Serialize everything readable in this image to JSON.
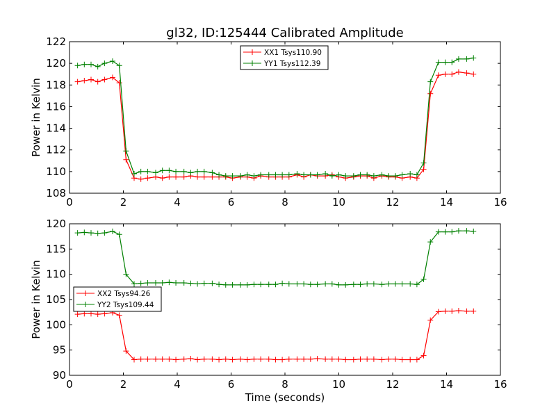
{
  "figure": {
    "title": "gl32, ID:125444 Calibrated Amplitude",
    "xlabel": "Time (seconds)"
  },
  "chart_data": [
    {
      "type": "line",
      "title": "gl32, ID:125444 Calibrated Amplitude",
      "xlabel": "",
      "ylabel": "Power in Kelvin",
      "xlim": [
        0,
        16
      ],
      "ylim": [
        108,
        122
      ],
      "xticks": [
        0,
        2,
        4,
        6,
        8,
        10,
        12,
        14,
        16
      ],
      "yticks": [
        108,
        110,
        112,
        114,
        116,
        118,
        120,
        122
      ],
      "grid": false,
      "legend_position": "top-center",
      "x": [
        0.3,
        0.55,
        0.8,
        1.05,
        1.3,
        1.6,
        1.85,
        2.1,
        2.4,
        2.65,
        2.9,
        3.2,
        3.45,
        3.7,
        3.95,
        4.25,
        4.5,
        4.75,
        5.0,
        5.3,
        5.55,
        5.8,
        6.05,
        6.35,
        6.6,
        6.85,
        7.1,
        7.4,
        7.65,
        7.9,
        8.15,
        8.45,
        8.7,
        8.95,
        9.2,
        9.5,
        9.75,
        10.0,
        10.25,
        10.55,
        10.8,
        11.05,
        11.3,
        11.6,
        11.85,
        12.1,
        12.35,
        12.65,
        12.9,
        13.15,
        13.4,
        13.7,
        13.95,
        14.2,
        14.45,
        14.75,
        15.0
      ],
      "series": [
        {
          "name": "XX1 Tsys110.90",
          "color": "#ff0000",
          "values": [
            118.3,
            118.4,
            118.5,
            118.3,
            118.5,
            118.7,
            118.2,
            111.1,
            109.4,
            109.3,
            109.4,
            109.5,
            109.4,
            109.5,
            109.5,
            109.5,
            109.6,
            109.5,
            109.5,
            109.5,
            109.5,
            109.5,
            109.4,
            109.5,
            109.5,
            109.4,
            109.6,
            109.5,
            109.5,
            109.5,
            109.5,
            109.7,
            109.5,
            109.7,
            109.6,
            109.6,
            109.7,
            109.5,
            109.4,
            109.5,
            109.6,
            109.6,
            109.4,
            109.6,
            109.5,
            109.5,
            109.4,
            109.5,
            109.4,
            110.2,
            117.2,
            118.9,
            119.0,
            119.0,
            119.2,
            119.1,
            119.0
          ]
        },
        {
          "name": "YY1 Tsys112.39",
          "color": "#008000",
          "values": [
            119.8,
            119.9,
            119.9,
            119.7,
            120.0,
            120.2,
            119.8,
            111.9,
            109.8,
            110.0,
            110.0,
            109.9,
            110.1,
            110.1,
            110.0,
            110.0,
            109.9,
            110.0,
            110.0,
            109.9,
            109.7,
            109.6,
            109.6,
            109.6,
            109.7,
            109.6,
            109.7,
            109.7,
            109.7,
            109.7,
            109.7,
            109.8,
            109.7,
            109.7,
            109.7,
            109.8,
            109.6,
            109.7,
            109.6,
            109.6,
            109.7,
            109.7,
            109.6,
            109.7,
            109.6,
            109.6,
            109.7,
            109.8,
            109.7,
            110.8,
            118.3,
            120.1,
            120.1,
            120.1,
            120.4,
            120.4,
            120.5
          ]
        }
      ]
    },
    {
      "type": "line",
      "title": "",
      "xlabel": "Time (seconds)",
      "ylabel": "Power in Kelvin",
      "xlim": [
        0,
        16
      ],
      "ylim": [
        90,
        120
      ],
      "xticks": [
        0,
        2,
        4,
        6,
        8,
        10,
        12,
        14,
        16
      ],
      "yticks": [
        90,
        95,
        100,
        105,
        110,
        115,
        120
      ],
      "grid": false,
      "legend_position": "center-left",
      "x": [
        0.3,
        0.55,
        0.8,
        1.05,
        1.3,
        1.6,
        1.85,
        2.1,
        2.4,
        2.65,
        2.9,
        3.2,
        3.45,
        3.7,
        3.95,
        4.25,
        4.5,
        4.75,
        5.0,
        5.3,
        5.55,
        5.8,
        6.05,
        6.35,
        6.6,
        6.85,
        7.1,
        7.4,
        7.65,
        7.9,
        8.15,
        8.45,
        8.7,
        8.95,
        9.2,
        9.5,
        9.75,
        10.0,
        10.25,
        10.55,
        10.8,
        11.05,
        11.3,
        11.6,
        11.85,
        12.1,
        12.35,
        12.65,
        12.9,
        13.15,
        13.4,
        13.7,
        13.95,
        14.2,
        14.45,
        14.75,
        15.0
      ],
      "series": [
        {
          "name": "XX2 Tsys94.26",
          "color": "#ff0000",
          "values": [
            102.1,
            102.2,
            102.2,
            102.1,
            102.2,
            102.4,
            101.9,
            94.8,
            93.1,
            93.2,
            93.2,
            93.2,
            93.2,
            93.2,
            93.1,
            93.2,
            93.3,
            93.1,
            93.2,
            93.2,
            93.1,
            93.2,
            93.1,
            93.2,
            93.1,
            93.2,
            93.2,
            93.2,
            93.1,
            93.1,
            93.2,
            93.2,
            93.2,
            93.2,
            93.3,
            93.2,
            93.2,
            93.2,
            93.1,
            93.1,
            93.2,
            93.2,
            93.2,
            93.1,
            93.2,
            93.2,
            93.1,
            93.1,
            93.1,
            93.9,
            100.9,
            102.6,
            102.7,
            102.7,
            102.8,
            102.7,
            102.7
          ]
        },
        {
          "name": "YY2 Tsys109.44",
          "color": "#008000",
          "values": [
            118.2,
            118.3,
            118.2,
            118.1,
            118.2,
            118.5,
            117.9,
            110.0,
            108.1,
            108.2,
            108.3,
            108.3,
            108.3,
            108.4,
            108.3,
            108.3,
            108.2,
            108.1,
            108.2,
            108.2,
            108.0,
            107.9,
            107.9,
            107.9,
            107.9,
            108.0,
            108.0,
            108.0,
            108.0,
            108.2,
            108.1,
            108.1,
            108.1,
            108.0,
            108.0,
            108.1,
            108.1,
            107.9,
            107.9,
            108.0,
            108.0,
            108.1,
            108.1,
            108.0,
            108.1,
            108.1,
            108.1,
            108.1,
            108.0,
            109.0,
            116.4,
            118.4,
            118.4,
            118.4,
            118.6,
            118.6,
            118.5
          ]
        }
      ]
    }
  ]
}
